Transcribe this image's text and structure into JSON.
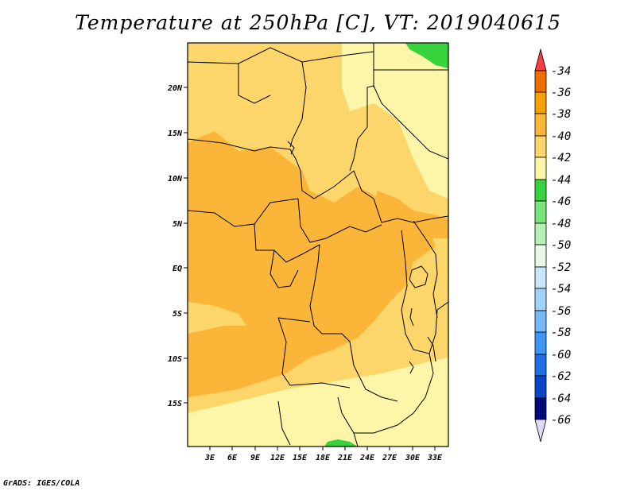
{
  "title": "Temperature at 250hPa [C], VT: 2019040615",
  "credit": "GrADS: IGES/COLA",
  "map": {
    "lat_labels": [
      "20N",
      "15N",
      "10N",
      "5N",
      "EQ",
      "5S",
      "10S",
      "15S"
    ],
    "lon_labels": [
      "3E",
      "6E",
      "9E",
      "12E",
      "15E",
      "18E",
      "21E",
      "24E",
      "27E",
      "30E",
      "33E"
    ]
  },
  "colorbar": {
    "labels": [
      "-34",
      "-36",
      "-38",
      "-40",
      "-42",
      "-44",
      "-46",
      "-48",
      "-50",
      "-52",
      "-54",
      "-56",
      "-58",
      "-60",
      "-62",
      "-64",
      "-66"
    ],
    "colors": [
      "#fa3c3c",
      "#f06e00",
      "#f7a000",
      "#fbb63a",
      "#fcd66a",
      "#fdf5a7",
      "#37d23c",
      "#78e678",
      "#b4f0b4",
      "#e6fae6",
      "#c8e6fa",
      "#a0d2fa",
      "#78b9fa",
      "#3c96f5",
      "#1e6ee6",
      "#0a46c8",
      "#000a78",
      "#dcdcfa"
    ]
  }
}
